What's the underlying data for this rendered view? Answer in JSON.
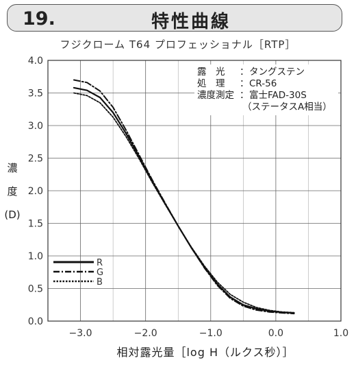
{
  "header": {
    "number": "19.",
    "title": "特性曲線"
  },
  "chart_data": {
    "type": "line",
    "title": "フジクローム T64 プロフェッショナル［RTP］",
    "ylabel": [
      "濃",
      "度",
      "(D)"
    ],
    "xlabel": "相対露光量［log H（ルクス秒）］",
    "xlim": [
      -3.5,
      1.0
    ],
    "ylim": [
      0.0,
      4.0
    ],
    "x_ticks": [
      -3.0,
      -2.0,
      -1.0,
      0.0,
      1.0
    ],
    "x_tick_labels": [
      "−3.0",
      "−2.0",
      "−1.0",
      "0.0",
      "1.0"
    ],
    "y_ticks": [
      0.0,
      0.5,
      1.0,
      1.5,
      2.0,
      2.5,
      3.0,
      3.5,
      4.0
    ],
    "y_tick_labels": [
      "0.0",
      "0.5",
      "1.0",
      "1.5",
      "2.0",
      "2.5",
      "3.0",
      "3.5",
      "4.0"
    ],
    "grid": true,
    "legend_position": "bottom-left",
    "annotation": [
      {
        "key": "露　光",
        "sep": "：",
        "value": "タングステン"
      },
      {
        "key": "処　理",
        "sep": "：",
        "value": "CR-56"
      },
      {
        "key": "濃度測定",
        "sep": "：",
        "value": "富士FAD-30S"
      },
      {
        "key": "",
        "sep": "",
        "value": "（ステータスA相当）"
      }
    ],
    "series": [
      {
        "name": "R",
        "style": "solid",
        "color": "#111111",
        "points": [
          [
            -3.1,
            3.58
          ],
          [
            -2.9,
            3.54
          ],
          [
            -2.7,
            3.43
          ],
          [
            -2.5,
            3.2
          ],
          [
            -2.3,
            2.88
          ],
          [
            -2.1,
            2.52
          ],
          [
            -1.9,
            2.15
          ],
          [
            -1.7,
            1.8
          ],
          [
            -1.5,
            1.46
          ],
          [
            -1.3,
            1.13
          ],
          [
            -1.1,
            0.83
          ],
          [
            -0.9,
            0.57
          ],
          [
            -0.7,
            0.37
          ],
          [
            -0.5,
            0.25
          ],
          [
            -0.3,
            0.19
          ],
          [
            -0.1,
            0.155
          ],
          [
            0.1,
            0.135
          ],
          [
            0.28,
            0.125
          ]
        ]
      },
      {
        "name": "G",
        "style": "dashdot",
        "color": "#111111",
        "points": [
          [
            -3.1,
            3.7
          ],
          [
            -2.9,
            3.66
          ],
          [
            -2.7,
            3.53
          ],
          [
            -2.5,
            3.28
          ],
          [
            -2.3,
            2.93
          ],
          [
            -2.1,
            2.55
          ],
          [
            -1.9,
            2.17
          ],
          [
            -1.7,
            1.81
          ],
          [
            -1.5,
            1.46
          ],
          [
            -1.3,
            1.13
          ],
          [
            -1.1,
            0.82
          ],
          [
            -0.9,
            0.55
          ],
          [
            -0.7,
            0.35
          ],
          [
            -0.5,
            0.23
          ],
          [
            -0.3,
            0.17
          ],
          [
            -0.1,
            0.14
          ],
          [
            0.1,
            0.125
          ],
          [
            0.28,
            0.115
          ]
        ]
      },
      {
        "name": "B",
        "style": "dotted",
        "color": "#111111",
        "points": [
          [
            -3.1,
            3.5
          ],
          [
            -2.9,
            3.46
          ],
          [
            -2.7,
            3.35
          ],
          [
            -2.5,
            3.13
          ],
          [
            -2.3,
            2.83
          ],
          [
            -2.1,
            2.49
          ],
          [
            -1.9,
            2.13
          ],
          [
            -1.7,
            1.79
          ],
          [
            -1.5,
            1.46
          ],
          [
            -1.3,
            1.14
          ],
          [
            -1.1,
            0.85
          ],
          [
            -0.9,
            0.6
          ],
          [
            -0.7,
            0.41
          ],
          [
            -0.5,
            0.29
          ],
          [
            -0.3,
            0.21
          ],
          [
            -0.1,
            0.165
          ],
          [
            0.1,
            0.14
          ],
          [
            0.28,
            0.13
          ]
        ]
      }
    ]
  }
}
